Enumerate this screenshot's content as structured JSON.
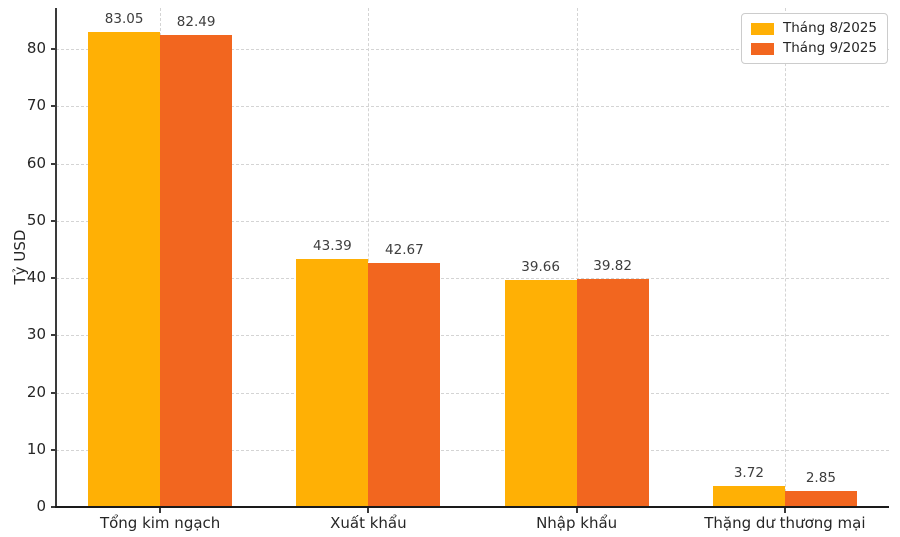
{
  "chart_data": {
    "type": "bar",
    "categories": [
      "Tổng kim ngạch",
      "Xuất khẩu",
      "Nhập khẩu",
      "Thặng dư thương mại"
    ],
    "series": [
      {
        "name": "Tháng 8/2025",
        "color": "#FFB005",
        "values": [
          83.05,
          43.39,
          39.66,
          3.72
        ]
      },
      {
        "name": "Tháng 9/2025",
        "color": "#F2661F",
        "values": [
          82.49,
          42.67,
          39.82,
          2.85
        ]
      }
    ],
    "value_labels": [
      "83.05",
      "82.49",
      "43.39",
      "42.67",
      "39.66",
      "39.82",
      "3.72",
      "2.85"
    ],
    "title": "",
    "xlabel": "",
    "ylabel": "Tỷ USD",
    "ylim": [
      0,
      87.2
    ],
    "yticks": [
      0,
      10,
      20,
      30,
      40,
      50,
      60,
      70,
      80
    ],
    "grid": "both-dashed",
    "legend_position": "top-right"
  },
  "colors": {
    "series_1": "#FFB005",
    "series_2": "#F2661F",
    "grid": "#d4d4d4",
    "spine": "#3a3a3a",
    "text": "#262626",
    "background": "#ffffff"
  }
}
